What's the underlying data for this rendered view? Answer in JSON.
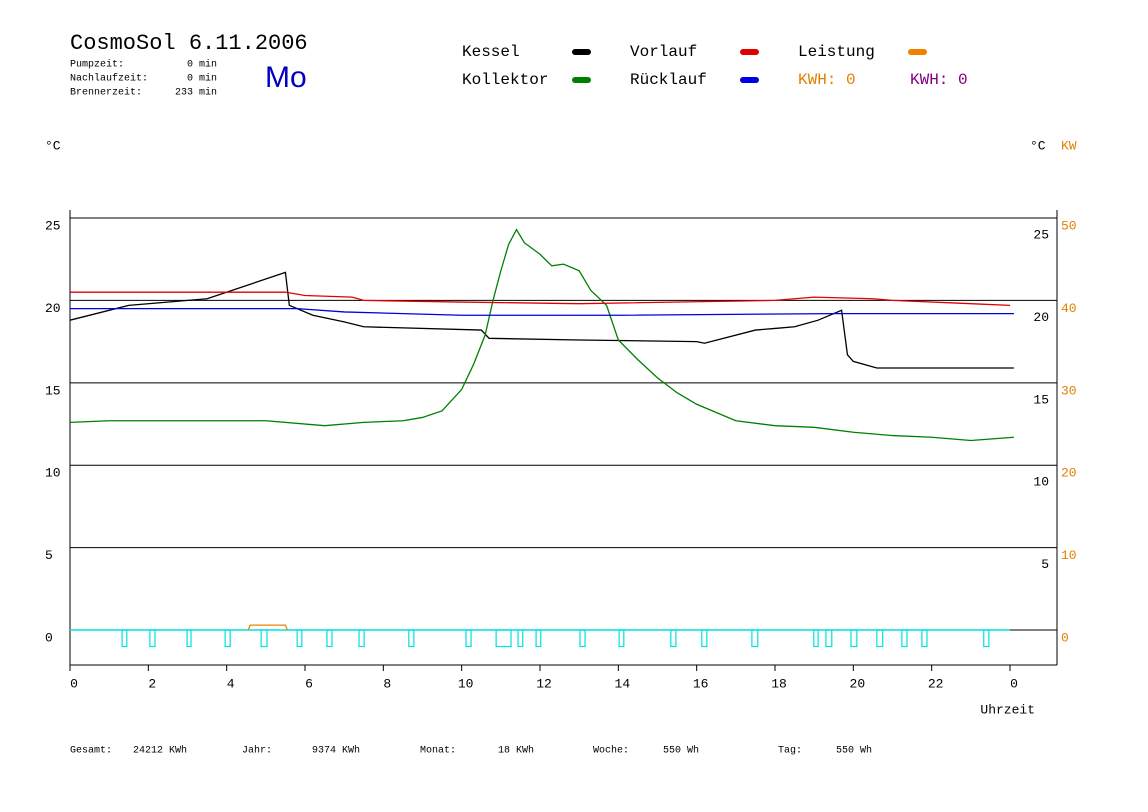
{
  "header": {
    "info": [
      {
        "label": "Pumpzeit:",
        "value": "0 min"
      },
      {
        "label": "Nachlaufzeit:",
        "value": "0 min"
      },
      {
        "label": "Brennerzeit:",
        "value": "233 min"
      }
    ],
    "weekday": "Mo",
    "kwh": [
      {
        "text": "KWH: 0",
        "color": "#e08000"
      },
      {
        "text": "KWH: 0",
        "color": "#800080"
      }
    ]
  },
  "chart_data": {
    "type": "line",
    "title": "CosmoSol 6.11.2006",
    "y_label": "°C",
    "y_label_right": "°C",
    "y2_label": "KW",
    "x_label": "Uhrzeit",
    "xlim": [
      0,
      25.2
    ],
    "xticks": [
      0,
      2,
      4,
      6,
      8,
      10,
      12,
      14,
      16,
      18,
      20,
      22,
      {
        "value": 24,
        "label": "0"
      }
    ],
    "ylim": [
      -2.12,
      25
    ],
    "yticks": [
      0,
      5,
      10,
      15,
      20,
      25
    ],
    "y2lim": [
      -4.24,
      50
    ],
    "y2ticks": [
      0,
      10,
      20,
      30,
      40,
      50
    ],
    "grid": true,
    "series": [
      {
        "name": "Kessel",
        "color": "#000000",
        "x": [
          0,
          1.5,
          3.5,
          5.5,
          5.6,
          6.2,
          7,
          7.5,
          10.5,
          10.7,
          13,
          16,
          16.2,
          17.5,
          18,
          18.5,
          19.1,
          19.7,
          19.85,
          20,
          20.6,
          24.1
        ],
        "values": [
          18.8,
          19.7,
          20.1,
          21.7,
          19.7,
          19.1,
          18.7,
          18.4,
          18.2,
          17.7,
          17.6,
          17.5,
          17.4,
          18.2,
          18.3,
          18.4,
          18.8,
          19.4,
          16.7,
          16.3,
          15.9,
          15.9
        ]
      },
      {
        "name": "Kollektor",
        "color": "#008000",
        "x": [
          0,
          1,
          5,
          6.5,
          7.5,
          8.5,
          9,
          9.5,
          10,
          10.3,
          10.6,
          10.8,
          11,
          11.2,
          11.4,
          11.6,
          12,
          12.3,
          12.6,
          13,
          13.3,
          13.7,
          14,
          14.5,
          15,
          15.5,
          16,
          16.5,
          17,
          18,
          19,
          20,
          21,
          22,
          23,
          24.1
        ],
        "values": [
          12.6,
          12.7,
          12.7,
          12.4,
          12.6,
          12.7,
          12.9,
          13.3,
          14.6,
          16.1,
          17.9,
          20,
          21.8,
          23.4,
          24.3,
          23.5,
          22.8,
          22.1,
          22.2,
          21.8,
          20.6,
          19.7,
          17.6,
          16.4,
          15.3,
          14.4,
          13.7,
          13.2,
          12.7,
          12.4,
          12.3,
          12.0,
          11.8,
          11.7,
          11.5,
          11.7
        ]
      },
      {
        "name": "Vorlauf",
        "color": "#e00000",
        "x": [
          0,
          5.5,
          6,
          7.2,
          7.5,
          10,
          13,
          18,
          19,
          20.5,
          21,
          23,
          24
        ],
        "values": [
          20.5,
          20.5,
          20.3,
          20.2,
          20.0,
          19.9,
          19.8,
          20.0,
          20.2,
          20.1,
          20.0,
          19.8,
          19.7
        ]
      },
      {
        "name": "Rücklauf",
        "color": "#0000e0",
        "x": [
          0,
          5.8,
          7,
          10,
          14,
          19.5,
          20,
          23.5,
          24.1
        ],
        "values": [
          19.5,
          19.5,
          19.3,
          19.1,
          19.1,
          19.2,
          19.2,
          19.2,
          19.2
        ]
      },
      {
        "name": "Leistung",
        "color": "#f08000",
        "axis": "y2",
        "x": [
          4.55,
          4.6,
          5.5,
          5.55
        ],
        "values": [
          0,
          0.6,
          0.6,
          0
        ]
      }
    ],
    "pump": {
      "color": "#00e0e0",
      "range": [
        0,
        24
      ],
      "low": -1.0,
      "intervals": [
        [
          1.33,
          1.45
        ],
        [
          2.04,
          2.17
        ],
        [
          2.99,
          3.09
        ],
        [
          3.96,
          4.09
        ],
        [
          4.88,
          5.03
        ],
        [
          5.8,
          5.92
        ],
        [
          6.56,
          6.69
        ],
        [
          7.38,
          7.51
        ],
        [
          8.65,
          8.78
        ],
        [
          10.11,
          10.24
        ],
        [
          10.88,
          11.26
        ],
        [
          11.44,
          11.56
        ],
        [
          11.9,
          12.02
        ],
        [
          13.02,
          13.15
        ],
        [
          14.02,
          14.14
        ],
        [
          15.34,
          15.47
        ],
        [
          16.13,
          16.26
        ],
        [
          17.41,
          17.56
        ],
        [
          18.99,
          19.1
        ],
        [
          19.3,
          19.45
        ],
        [
          19.94,
          20.09
        ],
        [
          20.6,
          20.75
        ],
        [
          21.24,
          21.37
        ],
        [
          21.75,
          21.88
        ],
        [
          23.33,
          23.46
        ]
      ]
    }
  },
  "footer": [
    {
      "label": "Gesamt:",
      "value": "24212 KWh"
    },
    {
      "label": "Jahr:",
      "value": "9374 KWh"
    },
    {
      "label": "Monat:",
      "value": "18 KWh"
    },
    {
      "label": "Woche:",
      "value": "550 Wh"
    },
    {
      "label": "Tag:",
      "value": "550 Wh"
    }
  ]
}
